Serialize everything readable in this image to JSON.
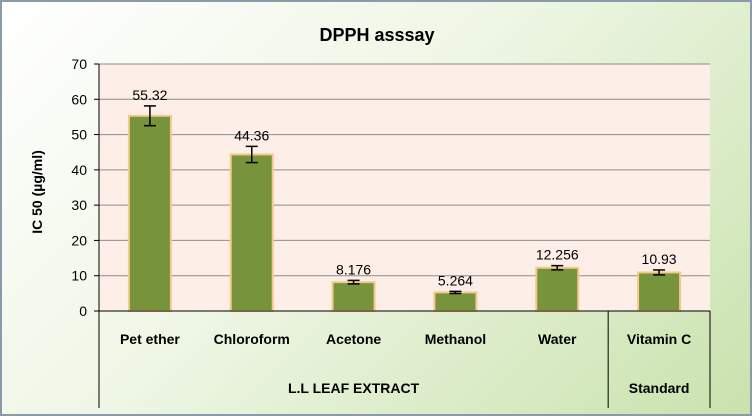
{
  "chart_data": {
    "type": "bar",
    "title": "DPPH asssay",
    "ylabel": "IC 50 (µg/ml)",
    "xlabel": "",
    "ylim": [
      0,
      70
    ],
    "yticks": [
      0,
      10,
      20,
      30,
      40,
      50,
      60,
      70
    ],
    "grid": true,
    "legend": "none",
    "categories": [
      "Pet ether",
      "Chloroform",
      "Acetone",
      "Methanol",
      "Water",
      "Vitamin C"
    ],
    "values": [
      55.32,
      44.36,
      8.176,
      5.264,
      12.256,
      10.93
    ],
    "data_labels": [
      "55.32",
      "44.36",
      "8.176",
      "5.264",
      "12.256",
      "10.93"
    ],
    "errors": [
      2.8,
      2.3,
      0.5,
      0.3,
      0.6,
      0.7
    ],
    "groups": [
      {
        "label": "L.L LEAF EXTRACT",
        "span": 5
      },
      {
        "label": "Standard",
        "span": 1
      }
    ],
    "colors": {
      "bar_fill": "#77933c",
      "bar_edge": "#f5c98b",
      "plot_bg": "#fdeee8",
      "gridline": "#8c8c8c"
    }
  }
}
